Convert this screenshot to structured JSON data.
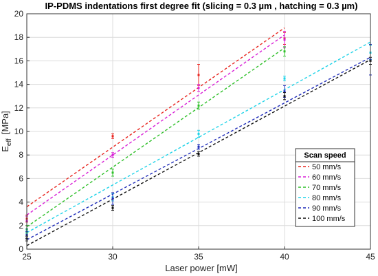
{
  "chart_data": {
    "type": "scatter",
    "title": "IP-PDMS indentations first degree fit (slicing = 0.3 µm , hatching = 0.3 µm)",
    "xlabel": "Laser power [mW]",
    "ylabel_main": "E",
    "ylabel_sub": "eff",
    "ylabel_unit": "[MPa]",
    "xlim": [
      25,
      45
    ],
    "ylim": [
      0,
      20
    ],
    "xticks": [
      "25",
      "30",
      "35",
      "40",
      "45"
    ],
    "yticks": [
      "0",
      "2",
      "4",
      "6",
      "8",
      "10",
      "12",
      "14",
      "16",
      "18",
      "20"
    ],
    "grid": true,
    "legend": {
      "title": "Scan speed",
      "position": "lower-right"
    },
    "series": [
      {
        "name": "50 mm/s",
        "color": "#e8251f",
        "points": [
          {
            "x": 25,
            "y": 2.6,
            "err": 0.3
          },
          {
            "x": 30,
            "y": 9.6,
            "err": 0.2
          },
          {
            "x": 35,
            "y": 14.8,
            "err": 0.9
          },
          {
            "x": 40,
            "y": 17.9,
            "err": 0.5
          }
        ],
        "fit": [
          {
            "x": 25,
            "y": 3.6
          },
          {
            "x": 40,
            "y": 18.8
          }
        ]
      },
      {
        "name": "60 mm/s",
        "color": "#d81fd6",
        "points": [
          {
            "x": 25,
            "y": 2.4,
            "err": 0.4
          },
          {
            "x": 30,
            "y": 8.0,
            "err": 0.2
          },
          {
            "x": 35,
            "y": 13.7,
            "err": 0.3
          },
          {
            "x": 40,
            "y": 17.8,
            "err": 0.7
          }
        ],
        "fit": [
          {
            "x": 25,
            "y": 2.9
          },
          {
            "x": 40,
            "y": 18.2
          }
        ]
      },
      {
        "name": "70 mm/s",
        "color": "#2fc02a",
        "points": [
          {
            "x": 25,
            "y": 1.7,
            "err": 0.3
          },
          {
            "x": 30,
            "y": 6.5,
            "err": 0.3
          },
          {
            "x": 35,
            "y": 12.2,
            "err": 0.3
          },
          {
            "x": 40,
            "y": 16.8,
            "err": 0.4
          }
        ],
        "fit": [
          {
            "x": 25,
            "y": 1.9
          },
          {
            "x": 40,
            "y": 17.1
          }
        ]
      },
      {
        "name": "80 mm/s",
        "color": "#1fd3e8",
        "points": [
          {
            "x": 25,
            "y": 1.5,
            "err": 0.2
          },
          {
            "x": 30,
            "y": 4.4,
            "err": 0.3
          },
          {
            "x": 35,
            "y": 9.8,
            "err": 0.3
          },
          {
            "x": 40,
            "y": 14.5,
            "err": 0.2
          },
          {
            "x": 45,
            "y": 16.7,
            "err": 0.6
          }
        ],
        "fit": [
          {
            "x": 25,
            "y": 1.4
          },
          {
            "x": 45,
            "y": 17.6
          }
        ]
      },
      {
        "name": "90 mm/s",
        "color": "#1f2cb8",
        "points": [
          {
            "x": 25,
            "y": 1.2,
            "err": 0.3
          },
          {
            "x": 30,
            "y": 4.3,
            "err": 0.5
          },
          {
            "x": 35,
            "y": 8.7,
            "err": 0.2
          },
          {
            "x": 40,
            "y": 13.4,
            "err": 0.5
          },
          {
            "x": 45,
            "y": 16.1,
            "err": 1.3
          }
        ],
        "fit": [
          {
            "x": 25,
            "y": 0.8
          },
          {
            "x": 45,
            "y": 16.3
          }
        ]
      },
      {
        "name": "100 mm/s",
        "color": "#111111",
        "points": [
          {
            "x": 25,
            "y": 0.9,
            "err": 0.2
          },
          {
            "x": 30,
            "y": 3.5,
            "err": 0.2
          },
          {
            "x": 35,
            "y": 8.1,
            "err": 0.2
          },
          {
            "x": 40,
            "y": 13.0,
            "err": 0.3
          },
          {
            "x": 45,
            "y": 16.0,
            "err": 0.3
          }
        ],
        "fit": [
          {
            "x": 25,
            "y": 0.3
          },
          {
            "x": 45,
            "y": 16.1
          }
        ]
      }
    ]
  }
}
